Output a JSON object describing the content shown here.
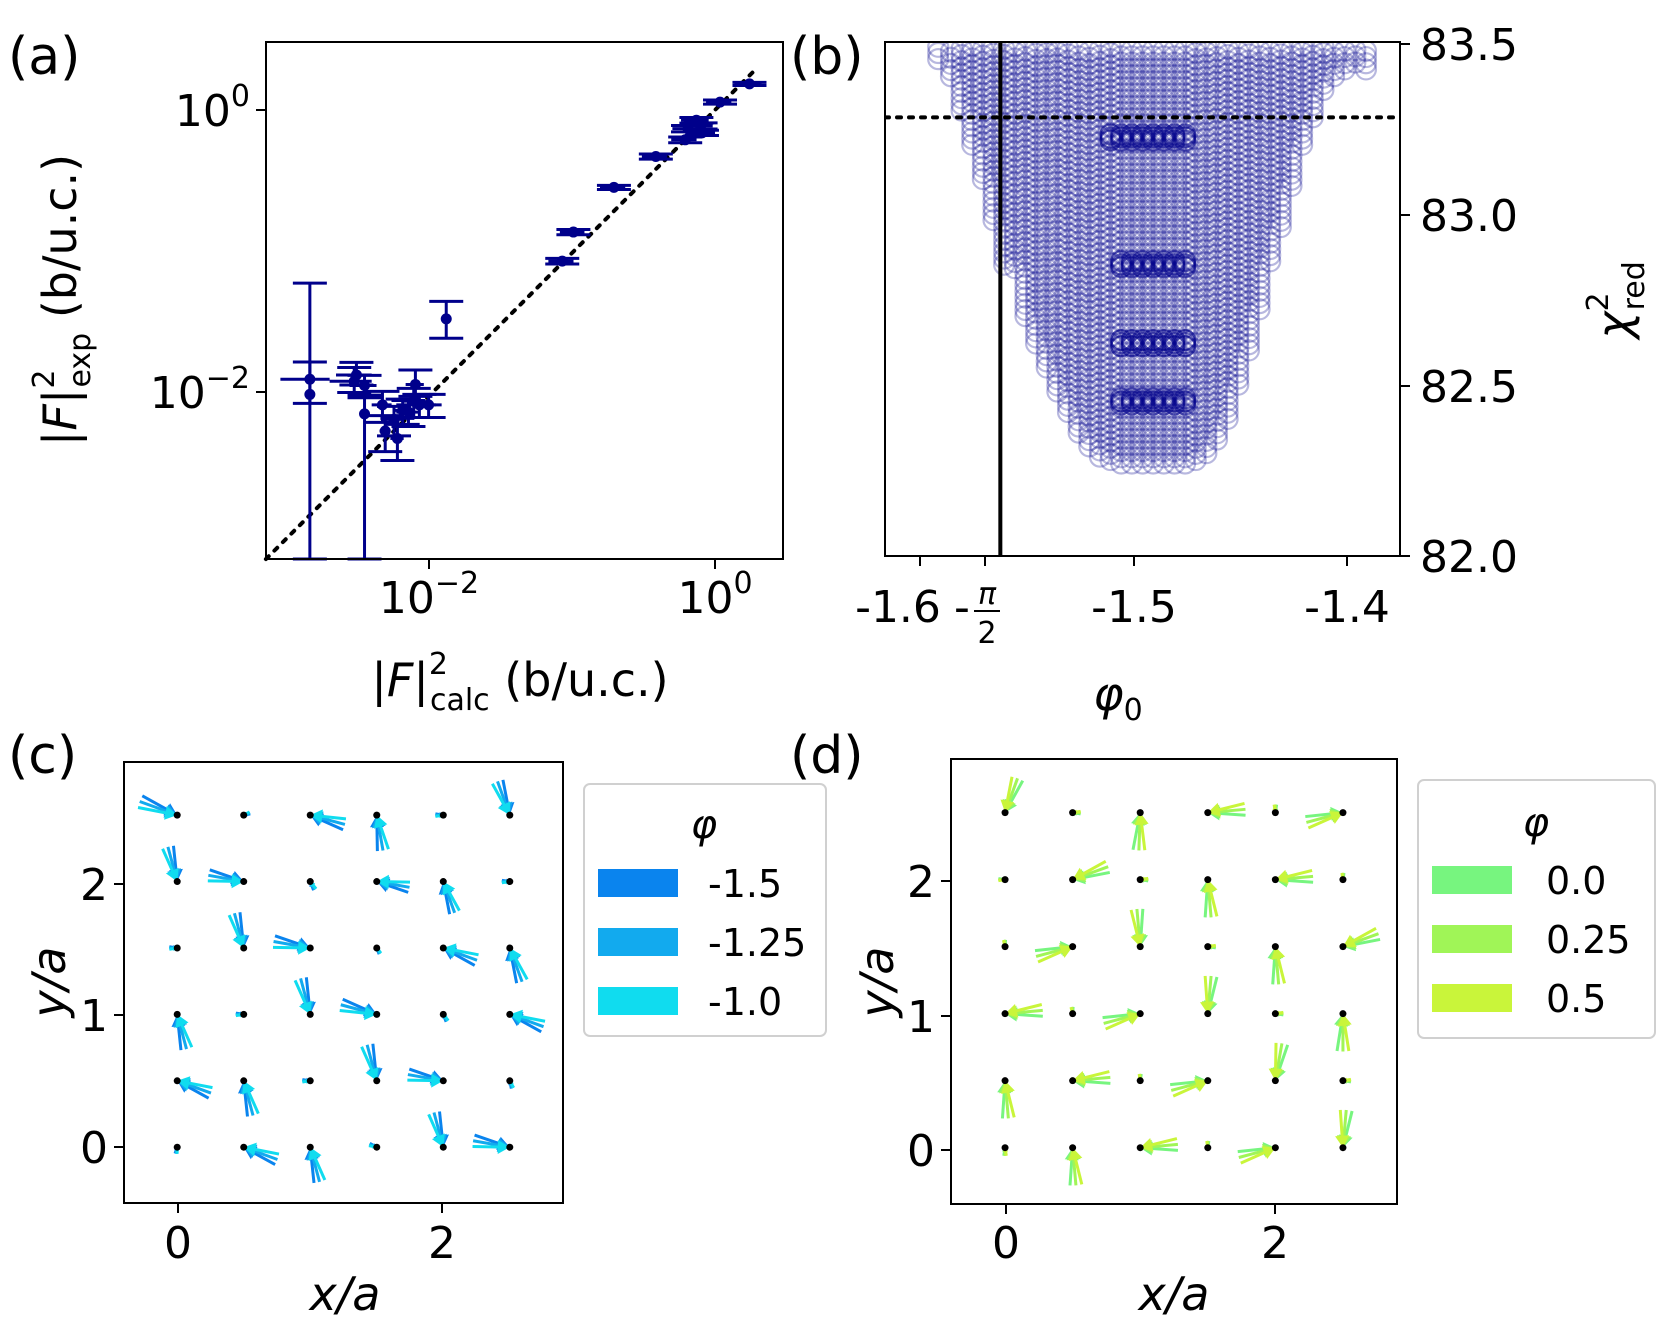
{
  "colors": {
    "navy": "#00008b",
    "blue_a": "#0a84ee",
    "blue_b": "#12aaee",
    "blue_c": "#10dcef",
    "green_a": "#77f57f",
    "green_b": "#a0f557",
    "green_c": "#c9f53a"
  },
  "panel_a": {
    "label": "(a)",
    "xlabel_main": "|F|",
    "xlabel_sup": "2",
    "xlabel_sub": "calc",
    "xlabel_unit": " (b/u.c.)",
    "ylabel_main": "|F|",
    "ylabel_sup": "2",
    "ylabel_sub": "exp",
    "ylabel_unit": " (b/u.c.)",
    "xtick_1": "10",
    "xtick_1_exp": "−2",
    "xtick_2": "10",
    "xtick_2_exp": "0",
    "ytick_1": "10",
    "ytick_1_exp": "−2",
    "ytick_2": "10",
    "ytick_2_exp": "0"
  },
  "panel_b": {
    "label": "(b)",
    "xlabel": "φ",
    "xlabel_sub": "0",
    "ylabel": "χ",
    "ylabel_sup": "2",
    "ylabel_sub": "red",
    "xtick_1": "-1.6",
    "xtick_pi_sign": "-",
    "xtick_pi_num": "π",
    "xtick_pi_den": "2",
    "xtick_2": "-1.5",
    "xtick_3": "-1.4",
    "ytick_1": "83.5",
    "ytick_2": "83.0",
    "ytick_3": "82.5",
    "ytick_4": "82.0"
  },
  "panel_c": {
    "label": "(c)",
    "xlabel": "x/a",
    "ylabel": "y/a",
    "xtick_1": "0",
    "xtick_2": "2",
    "ytick_1": "0",
    "ytick_2": "1",
    "ytick_3": "2",
    "legend_title": "φ",
    "legend": [
      "-1.5",
      "-1.25",
      "-1.0"
    ]
  },
  "panel_d": {
    "label": "(d)",
    "xlabel": "x/a",
    "ylabel": "y/a",
    "xtick_1": "0",
    "xtick_2": "2",
    "ytick_1": "0",
    "ytick_2": "1",
    "ytick_3": "2",
    "legend_title": "φ",
    "legend": [
      "0.0",
      "0.25",
      "0.5"
    ]
  },
  "chart_data": [
    {
      "type": "scatter",
      "panel": "a",
      "xscale": "log",
      "yscale": "log",
      "xlim_log10": [
        -3.2,
        0.5
      ],
      "ylim_log10": [
        -3.2,
        0.5
      ],
      "points": [
        {
          "x": 0.0013,
          "y": 0.0095,
          "yerr_lo": 0.009499,
          "yerr_hi": 0.05,
          "xerr": 0
        },
        {
          "x": 0.0013,
          "y": 0.0122,
          "yerr_lo": 0.004,
          "yerr_hi": 0.004,
          "xerr": 0.0005
        },
        {
          "x": 0.0027,
          "y": 0.0118,
          "yerr_lo": 0.002,
          "yerr_hi": 0.003,
          "xerr": 0.0009
        },
        {
          "x": 0.0028,
          "y": 0.0131,
          "yerr_lo": 0.002,
          "yerr_hi": 0.003,
          "xerr": 0.0008
        },
        {
          "x": 0.0032,
          "y": 0.011,
          "yerr_lo": 0.002,
          "yerr_hi": 0.002,
          "xerr": 0.0007
        },
        {
          "x": 0.0032,
          "y": 0.0069,
          "yerr_lo": 0.006899,
          "yerr_hi": 0.0025,
          "xerr": 0
        },
        {
          "x": 0.0043,
          "y": 0.008,
          "yerr_lo": 0.002,
          "yerr_hi": 0.002,
          "xerr": 0.0007
        },
        {
          "x": 0.0045,
          "y": 0.0052,
          "yerr_lo": 0.0015,
          "yerr_hi": 0.0015,
          "xerr": 0.0004
        },
        {
          "x": 0.0052,
          "y": 0.0063,
          "yerr_lo": 0.0015,
          "yerr_hi": 0.0015,
          "xerr": 0.0008
        },
        {
          "x": 0.0055,
          "y": 0.0046,
          "yerr_lo": 0.0014,
          "yerr_hi": 0.0018,
          "xerr": 0.0006
        },
        {
          "x": 0.006,
          "y": 0.0073,
          "yerr_lo": 0.0015,
          "yerr_hi": 0.0015,
          "xerr": 0.0009
        },
        {
          "x": 0.0066,
          "y": 0.0071,
          "yerr_lo": 0.0015,
          "yerr_hi": 0.0015,
          "xerr": 0.0012
        },
        {
          "x": 0.0072,
          "y": 0.0085,
          "yerr_lo": 0.002,
          "yerr_hi": 0.002,
          "xerr": 0.0012
        },
        {
          "x": 0.0074,
          "y": 0.0112,
          "yerr_lo": 0.002,
          "yerr_hi": 0.003,
          "xerr": 0.0011
        },
        {
          "x": 0.0079,
          "y": 0.008,
          "yerr_lo": 0.0015,
          "yerr_hi": 0.0015,
          "xerr": 0.0025
        },
        {
          "x": 0.0092,
          "y": 0.008,
          "yerr_lo": 0.0015,
          "yerr_hi": 0.0015,
          "xerr": 0.0022
        },
        {
          "x": 0.0123,
          "y": 0.033,
          "yerr_lo": 0.009,
          "yerr_hi": 0.011,
          "xerr": 0
        },
        {
          "x": 0.0832,
          "y": 0.0855,
          "yerr_lo": 0.004,
          "yerr_hi": 0.004,
          "xerr": 0.017
        },
        {
          "x": 0.1,
          "y": 0.138,
          "yerr_lo": 0.006,
          "yerr_hi": 0.006,
          "xerr": 0.02
        },
        {
          "x": 0.195,
          "y": 0.288,
          "yerr_lo": 0.01,
          "yerr_hi": 0.01,
          "xerr": 0.04
        },
        {
          "x": 0.389,
          "y": 0.479,
          "yerr_lo": 0.02,
          "yerr_hi": 0.02,
          "xerr": 0.08
        },
        {
          "x": 0.631,
          "y": 0.631,
          "yerr_lo": 0.03,
          "yerr_hi": 0.03,
          "xerr": 0.13
        },
        {
          "x": 0.661,
          "y": 0.759,
          "yerr_lo": 0.04,
          "yerr_hi": 0.04,
          "xerr": 0.15
        },
        {
          "x": 0.759,
          "y": 0.871,
          "yerr_lo": 0.04,
          "yerr_hi": 0.04,
          "xerr": 0.17
        },
        {
          "x": 0.813,
          "y": 0.794,
          "yerr_lo": 0.04,
          "yerr_hi": 0.04,
          "xerr": 0.18
        },
        {
          "x": 0.832,
          "y": 0.708,
          "yerr_lo": 0.03,
          "yerr_hi": 0.03,
          "xerr": 0.2
        },
        {
          "x": 1.12,
          "y": 1.175,
          "yerr_lo": 0.04,
          "yerr_hi": 0.04,
          "xerr": 0.23
        },
        {
          "x": 1.82,
          "y": 1.585,
          "yerr_lo": 0.04,
          "yerr_hi": 0.04,
          "xerr": 0.4
        }
      ],
      "reference_line": {
        "style": "dotted",
        "x_range": [
          0.00063,
          2.0
        ],
        "slope": 1
      }
    },
    {
      "type": "scatter",
      "panel": "b",
      "xlim": [
        -1.625,
        -1.383
      ],
      "ylim": [
        82.0,
        83.5
      ],
      "hline": 83.28,
      "vline": -1.5708,
      "columns": [
        {
          "x": -1.6,
          "ymin": 83.45
        },
        {
          "x": -1.594,
          "ymin": 83.4
        },
        {
          "x": -1.589,
          "ymin": 83.3
        },
        {
          "x": -1.584,
          "ymin": 83.2
        },
        {
          "x": -1.579,
          "ymin": 83.1
        },
        {
          "x": -1.574,
          "ymin": 82.98
        },
        {
          "x": -1.569,
          "ymin": 82.85
        },
        {
          "x": -1.564,
          "ymin": 82.84
        },
        {
          "x": -1.559,
          "ymin": 82.7
        },
        {
          "x": -1.554,
          "ymin": 82.62
        },
        {
          "x": -1.549,
          "ymin": 82.55
        },
        {
          "x": -1.544,
          "ymin": 82.48
        },
        {
          "x": -1.539,
          "ymin": 82.42
        },
        {
          "x": -1.534,
          "ymin": 82.36
        },
        {
          "x": -1.529,
          "ymin": 82.32
        },
        {
          "x": -1.524,
          "ymin": 82.29
        },
        {
          "x": -1.519,
          "ymin": 82.28
        },
        {
          "x": -1.514,
          "ymin": 82.27
        },
        {
          "x": -1.509,
          "ymin": 82.27
        },
        {
          "x": -1.504,
          "ymin": 82.27
        },
        {
          "x": -1.499,
          "ymin": 82.27
        },
        {
          "x": -1.494,
          "ymin": 82.27
        },
        {
          "x": -1.489,
          "ymin": 82.27
        },
        {
          "x": -1.484,
          "ymin": 82.27
        },
        {
          "x": -1.479,
          "ymin": 82.28
        },
        {
          "x": -1.474,
          "ymin": 82.3
        },
        {
          "x": -1.469,
          "ymin": 82.34
        },
        {
          "x": -1.464,
          "ymin": 82.4
        },
        {
          "x": -1.459,
          "ymin": 82.5
        },
        {
          "x": -1.454,
          "ymin": 82.6
        },
        {
          "x": -1.449,
          "ymin": 82.72
        },
        {
          "x": -1.444,
          "ymin": 82.86
        },
        {
          "x": -1.439,
          "ymin": 82.96
        },
        {
          "x": -1.434,
          "ymin": 83.08
        },
        {
          "x": -1.429,
          "ymin": 83.2
        },
        {
          "x": -1.424,
          "ymin": 83.28
        },
        {
          "x": -1.419,
          "ymin": 83.36
        },
        {
          "x": -1.414,
          "ymin": 83.4
        },
        {
          "x": -1.409,
          "ymin": 83.42
        },
        {
          "x": -1.404,
          "ymin": 83.44
        },
        {
          "x": -1.399,
          "ymin": 83.42
        }
      ],
      "step_levels": [
        {
          "x_from": -1.519,
          "x_to": -1.484,
          "y": 83.23
        },
        {
          "x_from": -1.514,
          "x_to": -1.484,
          "y": 82.86
        },
        {
          "x_from": -1.514,
          "x_to": -1.484,
          "y": 82.63
        },
        {
          "x_from": -1.514,
          "x_to": -1.484,
          "y": 82.46
        }
      ]
    },
    {
      "type": "quiver",
      "panel": "c",
      "xlim": [
        -0.4,
        2.9
      ],
      "ylim": [
        -0.42,
        2.9
      ],
      "lattice": [
        0,
        0.5,
        1,
        1.5,
        2,
        2.5
      ],
      "arrows": [
        {
          "x": 0,
          "y": 2.5,
          "a": -20,
          "l": 0.3
        },
        {
          "x": 0.5,
          "y": 2.5,
          "a": 200,
          "l": 0.05
        },
        {
          "x": 1,
          "y": 2.5,
          "a": 165,
          "l": 0.27
        },
        {
          "x": 1.5,
          "y": 2.5,
          "a": 100,
          "l": 0.27
        },
        {
          "x": 2,
          "y": 2.5,
          "a": 0,
          "l": 0.06
        },
        {
          "x": 2.5,
          "y": 2.5,
          "a": -70,
          "l": 0.27
        },
        {
          "x": 0,
          "y": 2,
          "a": -75,
          "l": 0.27
        },
        {
          "x": 0.5,
          "y": 2,
          "a": -10,
          "l": 0.27
        },
        {
          "x": 1,
          "y": 2,
          "a": 120,
          "l": 0.07
        },
        {
          "x": 1.5,
          "y": 2,
          "a": 170,
          "l": 0.25
        },
        {
          "x": 2,
          "y": 2,
          "a": 110,
          "l": 0.25
        },
        {
          "x": 2.5,
          "y": 2,
          "a": 0,
          "l": 0.06
        },
        {
          "x": 0,
          "y": 1.5,
          "a": 0,
          "l": 0.06
        },
        {
          "x": 0.5,
          "y": 1.5,
          "a": -75,
          "l": 0.27
        },
        {
          "x": 1,
          "y": 1.5,
          "a": -10,
          "l": 0.28
        },
        {
          "x": 1.5,
          "y": 1.5,
          "a": 120,
          "l": 0.05
        },
        {
          "x": 2,
          "y": 1.5,
          "a": 160,
          "l": 0.27
        },
        {
          "x": 2.5,
          "y": 1.5,
          "a": 110,
          "l": 0.27
        },
        {
          "x": 0,
          "y": 1,
          "a": 105,
          "l": 0.27
        },
        {
          "x": 0.5,
          "y": 1,
          "a": 0,
          "l": 0.06
        },
        {
          "x": 1,
          "y": 1,
          "a": -75,
          "l": 0.28
        },
        {
          "x": 1.5,
          "y": 1,
          "a": -15,
          "l": 0.28
        },
        {
          "x": 2,
          "y": 1,
          "a": 120,
          "l": 0.06
        },
        {
          "x": 2.5,
          "y": 1,
          "a": 160,
          "l": 0.27
        },
        {
          "x": 0,
          "y": 0.5,
          "a": 160,
          "l": 0.27
        },
        {
          "x": 0.5,
          "y": 0.5,
          "a": 105,
          "l": 0.27
        },
        {
          "x": 1,
          "y": 0.5,
          "a": 0,
          "l": 0.06
        },
        {
          "x": 1.5,
          "y": 0.5,
          "a": -75,
          "l": 0.28
        },
        {
          "x": 2,
          "y": 0.5,
          "a": -10,
          "l": 0.27
        },
        {
          "x": 2.5,
          "y": 0.5,
          "a": 110,
          "l": 0.06
        },
        {
          "x": 0,
          "y": 0,
          "a": 80,
          "l": 0.05
        },
        {
          "x": 0.5,
          "y": 0,
          "a": 160,
          "l": 0.27
        },
        {
          "x": 1,
          "y": 0,
          "a": 105,
          "l": 0.27
        },
        {
          "x": 1.5,
          "y": 0,
          "a": -20,
          "l": 0.06
        },
        {
          "x": 2,
          "y": 0,
          "a": -75,
          "l": 0.27
        },
        {
          "x": 2.5,
          "y": 0,
          "a": -10,
          "l": 0.28
        }
      ],
      "legend_values": [
        -1.5,
        -1.25,
        -1.0
      ]
    },
    {
      "type": "quiver",
      "panel": "d",
      "xlim": [
        -0.4,
        2.9
      ],
      "ylim": [
        -0.42,
        2.9
      ],
      "lattice": [
        0,
        0.5,
        1,
        1.5,
        2,
        2.5
      ],
      "arrows": [
        {
          "x": 0,
          "y": 2.5,
          "a": 250,
          "l": 0.27
        },
        {
          "x": 0.5,
          "y": 2.5,
          "a": 180,
          "l": 0.06
        },
        {
          "x": 1,
          "y": 2.5,
          "a": 88,
          "l": 0.28
        },
        {
          "x": 1.5,
          "y": 2.5,
          "a": 185,
          "l": 0.28
        },
        {
          "x": 2,
          "y": 2.5,
          "a": 270,
          "l": 0.06
        },
        {
          "x": 2.5,
          "y": 2.5,
          "a": 15,
          "l": 0.28
        },
        {
          "x": 0,
          "y": 2,
          "a": 0,
          "l": 0.05
        },
        {
          "x": 0.5,
          "y": 2,
          "a": 200,
          "l": 0.28
        },
        {
          "x": 1,
          "y": 2,
          "a": 180,
          "l": 0.06
        },
        {
          "x": 1.5,
          "y": 2,
          "a": 95,
          "l": 0.28
        },
        {
          "x": 2,
          "y": 2,
          "a": 185,
          "l": 0.28
        },
        {
          "x": 2.5,
          "y": 2,
          "a": 270,
          "l": 0.05
        },
        {
          "x": 0,
          "y": 1.5,
          "a": 275,
          "l": 0.05
        },
        {
          "x": 0.5,
          "y": 1.5,
          "a": 15,
          "l": 0.28
        },
        {
          "x": 1,
          "y": 1.5,
          "a": 275,
          "l": 0.28
        },
        {
          "x": 1.5,
          "y": 1.5,
          "a": 180,
          "l": 0.06
        },
        {
          "x": 2,
          "y": 1.5,
          "a": 95,
          "l": 0.28
        },
        {
          "x": 2.5,
          "y": 1.5,
          "a": 200,
          "l": 0.28
        },
        {
          "x": 0,
          "y": 1,
          "a": 185,
          "l": 0.28
        },
        {
          "x": 0.5,
          "y": 1,
          "a": 275,
          "l": 0.05
        },
        {
          "x": 1,
          "y": 1,
          "a": 15,
          "l": 0.28
        },
        {
          "x": 1.5,
          "y": 1,
          "a": 265,
          "l": 0.28
        },
        {
          "x": 2,
          "y": 1,
          "a": 180,
          "l": 0.06
        },
        {
          "x": 2.5,
          "y": 1,
          "a": 90,
          "l": 0.28
        },
        {
          "x": 0,
          "y": 0.5,
          "a": 95,
          "l": 0.28
        },
        {
          "x": 0.5,
          "y": 0.5,
          "a": 185,
          "l": 0.28
        },
        {
          "x": 1,
          "y": 0.5,
          "a": 270,
          "l": 0.05
        },
        {
          "x": 1.5,
          "y": 0.5,
          "a": 15,
          "l": 0.28
        },
        {
          "x": 2,
          "y": 0.5,
          "a": 260,
          "l": 0.28
        },
        {
          "x": 2.5,
          "y": 0.5,
          "a": 180,
          "l": 0.06
        },
        {
          "x": 0,
          "y": 0,
          "a": 90,
          "l": 0.06
        },
        {
          "x": 0.5,
          "y": 0,
          "a": 95,
          "l": 0.28
        },
        {
          "x": 1,
          "y": 0,
          "a": 185,
          "l": 0.28
        },
        {
          "x": 1.5,
          "y": 0,
          "a": 270,
          "l": 0.05
        },
        {
          "x": 2,
          "y": 0,
          "a": 15,
          "l": 0.28
        },
        {
          "x": 2.5,
          "y": 0,
          "a": 265,
          "l": 0.28
        }
      ],
      "legend_values": [
        0.0,
        0.25,
        0.5
      ]
    }
  ]
}
